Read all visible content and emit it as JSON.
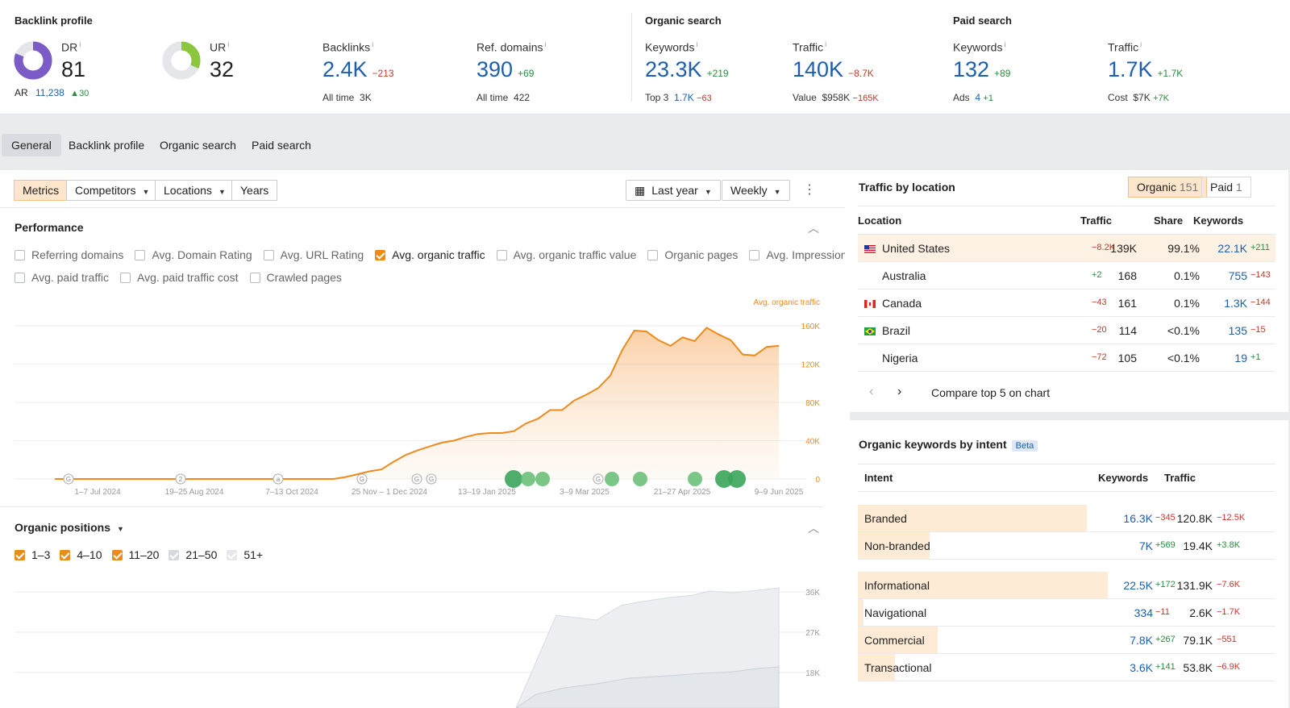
{
  "backlink_profile": {
    "title": "Backlink profile",
    "dr": {
      "label": "DR",
      "value": "81",
      "ring_fraction": 0.81,
      "ar_label": "AR",
      "ar_value": "11,238",
      "ar_delta": "30"
    },
    "ur": {
      "label": "UR",
      "value": "32",
      "ring_fraction": 0.32
    },
    "backlinks": {
      "label": "Backlinks",
      "value": "2.4K",
      "delta": "−213",
      "sub_label": "All time",
      "sub_value": "3K"
    },
    "ref_domains": {
      "label": "Ref. domains",
      "value": "390",
      "delta": "+69",
      "sub_label": "All time",
      "sub_value": "422"
    }
  },
  "organic_search": {
    "title": "Organic search",
    "keywords": {
      "label": "Keywords",
      "value": "23.3K",
      "delta": "+219",
      "sub_label": "Top 3",
      "sub_value": "1.7K",
      "sub_delta": "−63"
    },
    "traffic": {
      "label": "Traffic",
      "value": "140K",
      "delta": "−8.7K",
      "sub_label": "Value",
      "sub_value": "$958K",
      "sub_delta": "−165K"
    }
  },
  "paid_search": {
    "title": "Paid search",
    "keywords": {
      "label": "Keywords",
      "value": "132",
      "delta": "+89",
      "sub_label": "Ads",
      "sub_value": "4",
      "sub_delta": "+1"
    },
    "traffic": {
      "label": "Traffic",
      "value": "1.7K",
      "delta": "+1.7K",
      "sub_label": "Cost",
      "sub_value": "$7K",
      "sub_delta": "+7K"
    }
  },
  "tabs": [
    "General",
    "Backlink profile",
    "Organic search",
    "Paid search"
  ],
  "toolbar": {
    "metrics": "Metrics",
    "competitors": "Competitors",
    "locations": "Locations",
    "years": "Years",
    "date_range": "Last year",
    "granularity": "Weekly"
  },
  "performance": {
    "title": "Performance",
    "checkboxes_row1": [
      {
        "label": "Referring domains",
        "checked": false
      },
      {
        "label": "Avg. Domain Rating",
        "checked": false
      },
      {
        "label": "Avg. URL Rating",
        "checked": false
      },
      {
        "label": "Avg. organic traffic",
        "checked": true
      },
      {
        "label": "Avg. organic traffic value",
        "checked": false
      },
      {
        "label": "Organic pages",
        "checked": false
      },
      {
        "label": "Avg. Impressions",
        "checked": false
      }
    ],
    "checkboxes_row2": [
      {
        "label": "Avg. paid traffic",
        "checked": false
      },
      {
        "label": "Avg. paid traffic cost",
        "checked": false
      },
      {
        "label": "Crawled pages",
        "checked": false
      }
    ]
  },
  "chart_data": {
    "type": "area",
    "series": [
      {
        "name": "Avg. organic traffic",
        "color": "#ee8a1c",
        "values": [
          0,
          0,
          0,
          0,
          0,
          0,
          0,
          0,
          0,
          0,
          0,
          0,
          0,
          0,
          0,
          0,
          0,
          0,
          0,
          0,
          0,
          0,
          0,
          2000,
          5000,
          8000,
          10000,
          18000,
          25000,
          30000,
          34000,
          38000,
          40000,
          44000,
          47000,
          48000,
          48000,
          50000,
          58000,
          63000,
          72000,
          72000,
          82000,
          88000,
          95000,
          108000,
          135000,
          155000,
          154000,
          145000,
          139000,
          148000,
          144000,
          158000,
          151000,
          145000,
          130000,
          129000,
          138000,
          139000
        ]
      }
    ],
    "x_tick_labels": [
      "1–7 Jul 2024",
      "19–25 Aug 2024",
      "7–13 Oct 2024",
      "25 Nov – 1 Dec 2024",
      "13–19 Jan 2025",
      "3–9 Mar 2025",
      "21–27 Apr 2025",
      "9–9 Jun 2025"
    ],
    "y_tick_labels": [
      "160K",
      "120K",
      "80K",
      "40K",
      "0"
    ],
    "ylim": [
      0,
      160000
    ],
    "annotation_markers": [
      "G",
      "2",
      "a",
      "G",
      "G",
      "G",
      "G"
    ],
    "xlabel": "",
    "ylabel": "",
    "grid": true
  },
  "organic_positions": {
    "title": "Organic positions",
    "legend": [
      {
        "label": "1–3",
        "style": "checked"
      },
      {
        "label": "4–10",
        "style": "checked"
      },
      {
        "label": "11–20",
        "style": "checked"
      },
      {
        "label": "21–50",
        "style": "gray"
      },
      {
        "label": "51+",
        "style": "lightgray"
      }
    ],
    "y_tick_labels": [
      "36K",
      "27K",
      "18K"
    ]
  },
  "traffic_by_location": {
    "title": "Traffic by location",
    "toggle_organic": "Organic",
    "toggle_organic_count": "151",
    "toggle_paid": "Paid",
    "toggle_paid_count": "1",
    "headers": {
      "location": "Location",
      "traffic": "Traffic",
      "share": "Share",
      "keywords": "Keywords"
    },
    "rows": [
      {
        "country": "United States",
        "flag": "us",
        "traffic": "139K",
        "traffic_delta": "−8.2K",
        "share": "99.1%",
        "keywords": "22.1K",
        "kw_delta": "+211"
      },
      {
        "country": "Australia",
        "flag": "none",
        "traffic": "168",
        "traffic_delta": "+2",
        "share": "0.1%",
        "keywords": "755",
        "kw_delta": "−143"
      },
      {
        "country": "Canada",
        "flag": "ca",
        "traffic": "161",
        "traffic_delta": "−43",
        "share": "0.1%",
        "keywords": "1.3K",
        "kw_delta": "−144"
      },
      {
        "country": "Brazil",
        "flag": "br",
        "traffic": "114",
        "traffic_delta": "−20",
        "share": "<0.1%",
        "keywords": "135",
        "kw_delta": "−15"
      },
      {
        "country": "Nigeria",
        "flag": "none",
        "traffic": "105",
        "traffic_delta": "−72",
        "share": "<0.1%",
        "keywords": "19",
        "kw_delta": "+1"
      }
    ],
    "compare_label": "Compare top 5 on chart"
  },
  "intent": {
    "title": "Organic keywords by intent",
    "badge": "Beta",
    "headers": {
      "intent": "Intent",
      "keywords": "Keywords",
      "traffic": "Traffic"
    },
    "rows": [
      {
        "label": "Branded",
        "keywords": "16.3K",
        "kw_delta": "−345",
        "traffic": "120.8K",
        "tr_delta": "−12.5K",
        "share": 0.86
      },
      {
        "label": "Non-branded",
        "keywords": "7K",
        "kw_delta": "+569",
        "traffic": "19.4K",
        "tr_delta": "+3.8K",
        "share": 0.27
      },
      {
        "label": "Informational",
        "keywords": "22.5K",
        "kw_delta": "+172",
        "traffic": "131.9K",
        "tr_delta": "−7.6K",
        "share": 0.94
      },
      {
        "label": "Navigational",
        "keywords": "334",
        "kw_delta": "−11",
        "traffic": "2.6K",
        "tr_delta": "−1.7K",
        "share": 0.02
      },
      {
        "label": "Commercial",
        "keywords": "7.8K",
        "kw_delta": "+267",
        "traffic": "79.1K",
        "tr_delta": "−551",
        "share": 0.3
      },
      {
        "label": "Transactional",
        "keywords": "3.6K",
        "kw_delta": "+141",
        "traffic": "53.8K",
        "tr_delta": "−6.9K",
        "share": 0.14
      }
    ]
  },
  "colors": {
    "accent_orange": "#ee8a1c",
    "blue": "#1d5fae",
    "negative": "#c0392b",
    "positive": "#2d8a3e",
    "dr_ring": "#7b5cc7",
    "ur_ring": "#8cc63f"
  }
}
